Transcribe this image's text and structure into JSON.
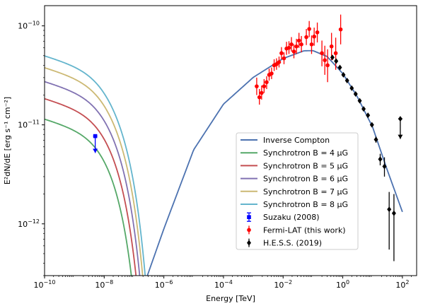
{
  "chart_data": {
    "type": "line",
    "xlabel": "Energy [TeV]",
    "ylabel": "E²dN/dE [erg s⁻¹ cm⁻²]",
    "xscale": "log",
    "yscale": "log",
    "xlim": [
      1e-10,
      300
    ],
    "ylim": [
      3e-13,
      1.6e-10
    ],
    "x_ticks": [
      {
        "value": 1e-10,
        "mant": "10",
        "exp": "−10"
      },
      {
        "value": 1e-08,
        "mant": "10",
        "exp": "−8"
      },
      {
        "value": 1e-06,
        "mant": "10",
        "exp": "−6"
      },
      {
        "value": 0.0001,
        "mant": "10",
        "exp": "−4"
      },
      {
        "value": 0.01,
        "mant": "10",
        "exp": "−2"
      },
      {
        "value": 1,
        "mant": "10",
        "exp": "0"
      },
      {
        "value": 100,
        "mant": "10",
        "exp": "2"
      }
    ],
    "y_ticks": [
      {
        "value": 1e-12,
        "mant": "10",
        "exp": "−12"
      },
      {
        "value": 1e-11,
        "mant": "10",
        "exp": "−11"
      },
      {
        "value": 1e-10,
        "mant": "10",
        "exp": "−10"
      }
    ],
    "grid": false,
    "legend_position": "lower-center",
    "models": [
      {
        "name": "Inverse Compton",
        "color": "#4c72b0",
        "points": [
          [
            2.8e-07,
            3e-13
          ],
          [
            1e-06,
            8.9e-13
          ],
          [
            1e-05,
            5.6e-12
          ],
          [
            0.0001,
            1.62e-11
          ],
          [
            0.001,
            3.02e-11
          ],
          [
            0.01,
            4.68e-11
          ],
          [
            0.05,
            5.6e-11
          ],
          [
            0.1,
            5.62e-11
          ],
          [
            0.3,
            4.9e-11
          ],
          [
            1,
            3.3e-11
          ],
          [
            3,
            1.95e-11
          ],
          [
            10,
            9.5e-12
          ],
          [
            30,
            3.6e-12
          ],
          [
            100,
            1.32e-12
          ]
        ]
      },
      {
        "name": "Synchrotron B = 4 μG",
        "color": "#55a868",
        "amp": 1.15e-11,
        "cutoff_scale": 1.0
      },
      {
        "name": "Synchrotron B = 5 μG",
        "color": "#c44e52",
        "amp": 1.85e-11,
        "cutoff_scale": 1.25
      },
      {
        "name": "Synchrotron B = 6 μG",
        "color": "#8172b2",
        "amp": 2.75e-11,
        "cutoff_scale": 1.5
      },
      {
        "name": "Synchrotron B = 7 μG",
        "color": "#ccb974",
        "amp": 3.8e-11,
        "cutoff_scale": 1.75
      },
      {
        "name": "Synchrotron B = 8 μG",
        "color": "#64b5cd",
        "amp": 5e-11,
        "cutoff_scale": 2.0
      }
    ],
    "synchrotron_shape": {
      "index": 0.09,
      "break_energy": 1e-08,
      "cutoff_energy": 4.2e-08
    },
    "data_sets": [
      {
        "name": "Suzaku (2008)",
        "color": "#0000ff",
        "marker": "square",
        "points": [
          {
            "x": 5e-09,
            "y": 7.7e-12,
            "upper_limit": true,
            "arrow_to": 5.2e-12
          }
        ]
      },
      {
        "name": "Fermi-LAT (this work)",
        "color": "#ff0000",
        "marker": "circle",
        "points": [
          {
            "x": 0.0013,
            "y": 2.45e-11,
            "lo": 2e-11,
            "hi": 3e-11
          },
          {
            "x": 0.0016,
            "y": 1.9e-11,
            "lo": 1.6e-11,
            "hi": 2.3e-11
          },
          {
            "x": 0.0019,
            "y": 2.1e-11,
            "lo": 1.8e-11,
            "hi": 2.5e-11
          },
          {
            "x": 0.0023,
            "y": 2.45e-11,
            "lo": 2.1e-11,
            "hi": 2.9e-11
          },
          {
            "x": 0.0028,
            "y": 2.7e-11,
            "lo": 2.3e-11,
            "hi": 3.1e-11
          },
          {
            "x": 0.0034,
            "y": 3.2e-11,
            "lo": 2.8e-11,
            "hi": 3.7e-11
          },
          {
            "x": 0.0041,
            "y": 3.3e-11,
            "lo": 2.9e-11,
            "hi": 3.8e-11
          },
          {
            "x": 0.005,
            "y": 4e-11,
            "lo": 3.5e-11,
            "hi": 4.6e-11
          },
          {
            "x": 0.006,
            "y": 4.1e-11,
            "lo": 3.6e-11,
            "hi": 4.7e-11
          },
          {
            "x": 0.0073,
            "y": 4.3e-11,
            "lo": 3.8e-11,
            "hi": 4.9e-11
          },
          {
            "x": 0.0088,
            "y": 5.3e-11,
            "lo": 4.6e-11,
            "hi": 6.1e-11
          },
          {
            "x": 0.0107,
            "y": 4.7e-11,
            "lo": 4.1e-11,
            "hi": 5.4e-11
          },
          {
            "x": 0.013,
            "y": 5.9e-11,
            "lo": 5.1e-11,
            "hi": 6.9e-11
          },
          {
            "x": 0.0157,
            "y": 6e-11,
            "lo": 5.2e-11,
            "hi": 7e-11
          },
          {
            "x": 0.019,
            "y": 6.5e-11,
            "lo": 5.5e-11,
            "hi": 7.7e-11
          },
          {
            "x": 0.023,
            "y": 5.5e-11,
            "lo": 4.7e-11,
            "hi": 6.5e-11
          },
          {
            "x": 0.028,
            "y": 6.2e-11,
            "lo": 5.2e-11,
            "hi": 7.4e-11
          },
          {
            "x": 0.034,
            "y": 7.1e-11,
            "lo": 6e-11,
            "hi": 8.5e-11
          },
          {
            "x": 0.041,
            "y": 6.5e-11,
            "lo": 5.4e-11,
            "hi": 7.9e-11
          },
          {
            "x": 0.06,
            "y": 7.7e-11,
            "lo": 6.4e-11,
            "hi": 9.3e-11
          },
          {
            "x": 0.075,
            "y": 9.3e-11,
            "lo": 7.7e-11,
            "hi": 1.12e-10
          },
          {
            "x": 0.09,
            "y": 6.5e-11,
            "lo": 5.2e-11,
            "hi": 8e-11
          },
          {
            "x": 0.11,
            "y": 7.8e-11,
            "lo": 6.3e-11,
            "hi": 9.6e-11
          },
          {
            "x": 0.14,
            "y": 8.6e-11,
            "lo": 6.8e-11,
            "hi": 1.08e-10
          },
          {
            "x": 0.2,
            "y": 5.3e-11,
            "lo": 3.9e-11,
            "hi": 7.1e-11
          },
          {
            "x": 0.25,
            "y": 4.5e-11,
            "lo": 3.2e-11,
            "hi": 6.3e-11
          },
          {
            "x": 0.31,
            "y": 4e-11,
            "lo": 2.7e-11,
            "hi": 5.8e-11
          },
          {
            "x": 0.42,
            "y": 6.2e-11,
            "lo": 4.5e-11,
            "hi": 8.5e-11
          },
          {
            "x": 0.58,
            "y": 5.3e-11,
            "lo": 3.6e-11,
            "hi": 7.6e-11
          },
          {
            "x": 0.85,
            "y": 9.2e-11,
            "lo": 6.5e-11,
            "hi": 1.3e-10
          }
        ]
      },
      {
        "name": "H.E.S.S. (2019)",
        "color": "#000000",
        "marker": "diamond",
        "points": [
          {
            "x": 0.45,
            "y": 4.8e-11
          },
          {
            "x": 0.6,
            "y": 4.4e-11
          },
          {
            "x": 0.8,
            "y": 3.8e-11
          },
          {
            "x": 1.05,
            "y": 3.2e-11
          },
          {
            "x": 1.4,
            "y": 2.8e-11
          },
          {
            "x": 2.0,
            "y": 2.35e-11
          },
          {
            "x": 2.7,
            "y": 2.05e-11
          },
          {
            "x": 3.7,
            "y": 1.75e-11
          },
          {
            "x": 5.0,
            "y": 1.45e-11
          },
          {
            "x": 7.0,
            "y": 1.25e-11
          },
          {
            "x": 9.5,
            "y": 1e-11
          },
          {
            "x": 13,
            "y": 7.1e-12,
            "lo": 6.6e-12,
            "hi": 7.6e-12
          },
          {
            "x": 18,
            "y": 4.5e-12,
            "lo": 3.9e-12,
            "hi": 5.1e-12
          },
          {
            "x": 25,
            "y": 3.8e-12,
            "lo": 3e-12,
            "hi": 4.7e-12
          },
          {
            "x": 36,
            "y": 1.4e-12,
            "lo": 5.5e-13,
            "hi": 2.1e-12
          },
          {
            "x": 52,
            "y": 1.28e-12,
            "lo": 4.2e-13,
            "hi": 2e-12
          },
          {
            "x": 85,
            "y": 1.15e-11,
            "upper_limit": true,
            "arrow_to": 7.2e-12
          }
        ]
      }
    ],
    "legend": [
      {
        "label": "Inverse Compton",
        "kind": "line",
        "color": "#4c72b0"
      },
      {
        "label": "Synchrotron B = 4 μG",
        "kind": "line",
        "color": "#55a868"
      },
      {
        "label": "Synchrotron B = 5 μG",
        "kind": "line",
        "color": "#c44e52"
      },
      {
        "label": "Synchrotron B = 6 μG",
        "kind": "line",
        "color": "#8172b2"
      },
      {
        "label": "Synchrotron B = 7 μG",
        "kind": "line",
        "color": "#ccb974"
      },
      {
        "label": "Synchrotron B = 8 μG",
        "kind": "line",
        "color": "#64b5cd"
      },
      {
        "label": "Suzaku (2008)",
        "kind": "errorbar",
        "marker": "square",
        "color": "#0000ff"
      },
      {
        "label": "Fermi-LAT (this work)",
        "kind": "errorbar",
        "marker": "circle",
        "color": "#ff0000"
      },
      {
        "label": "H.E.S.S. (2019)",
        "kind": "errorbar",
        "marker": "diamond",
        "color": "#000000"
      }
    ]
  }
}
